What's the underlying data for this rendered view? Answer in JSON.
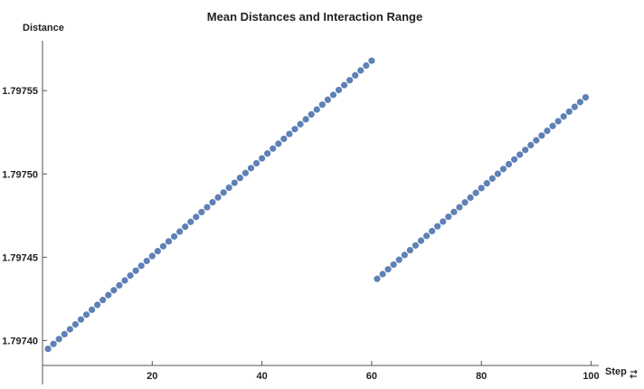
{
  "chart_data": {
    "type": "scatter",
    "title": "Mean Distances and Interaction Range",
    "xlabel": "Step",
    "ylabel": "Distance",
    "xlim": [
      0,
      100
    ],
    "ylim": [
      1.797385,
      1.79758
    ],
    "xticks": [
      20,
      40,
      60,
      80,
      100
    ],
    "yticks": [
      1.7974,
      1.79745,
      1.7975,
      1.79755
    ],
    "ytick_labels": [
      "1.79740",
      "1.79745",
      "1.79750",
      "1.79755"
    ],
    "grid": false,
    "colors": {
      "marker": "#5e81b5"
    },
    "icons": {
      "xlabel_suffix": "swap-arrows-icon"
    },
    "series": [
      {
        "name": "",
        "segments": [
          {
            "x_start": 1,
            "x_end": 60,
            "y_start": 1.797395,
            "y_end": 1.797568
          },
          {
            "x_start": 61,
            "x_end": 99,
            "y_start": 1.797437,
            "y_end": 1.797546
          }
        ]
      }
    ]
  }
}
